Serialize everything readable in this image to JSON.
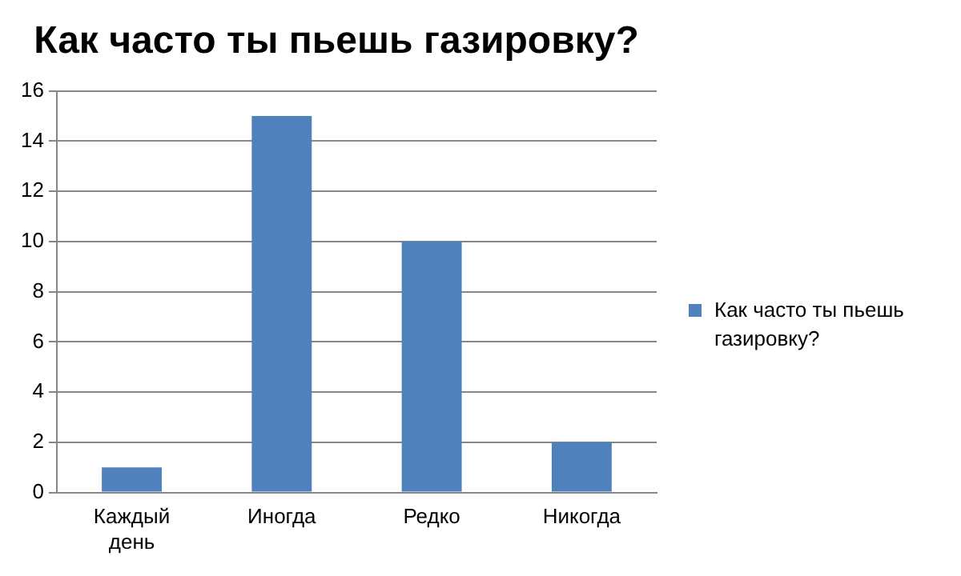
{
  "chart_data": {
    "type": "bar",
    "title": "Как часто ты пьешь газировку?",
    "categories": [
      "Каждый день",
      "Иногда",
      "Редко",
      "Никогда"
    ],
    "series": [
      {
        "name": "Как часто ты пьешь газировку?",
        "color": "#4f81bd",
        "values": [
          1,
          15,
          10,
          2
        ]
      }
    ],
    "ylim": [
      0,
      16
    ],
    "yticks": [
      0,
      2,
      4,
      6,
      8,
      10,
      12,
      14,
      16
    ],
    "grid": "y",
    "legend": "right"
  }
}
